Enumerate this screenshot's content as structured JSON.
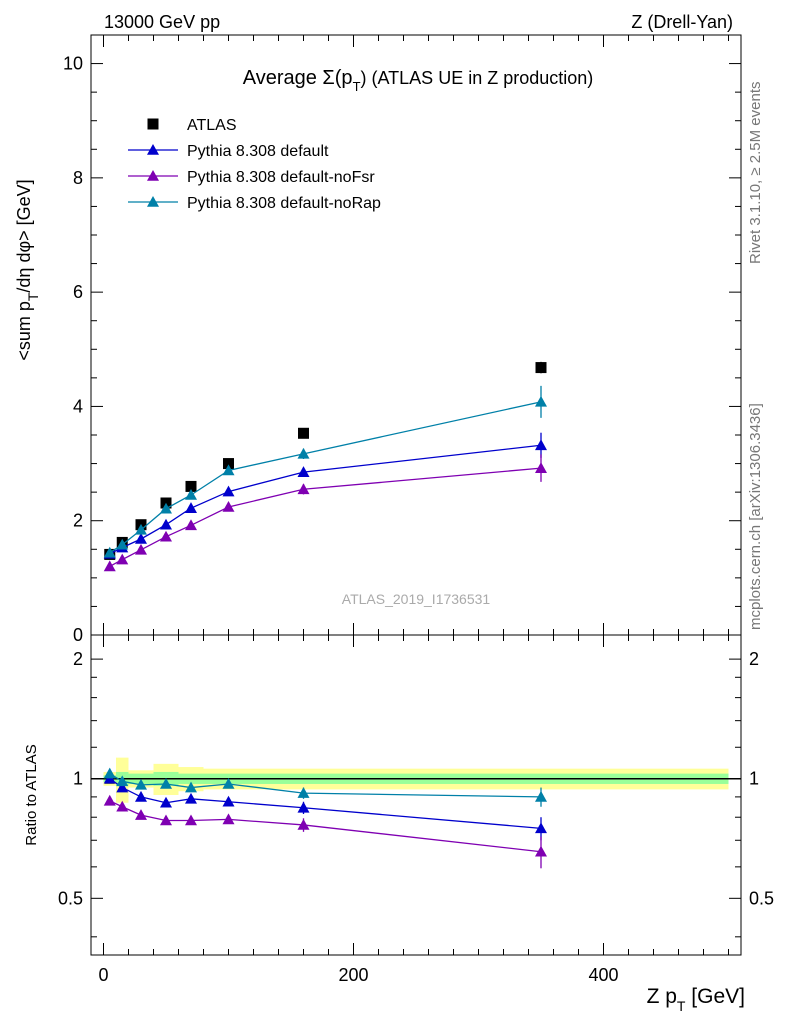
{
  "header": {
    "left": "13000 GeV pp",
    "right": "Z (Drell-Yan)"
  },
  "side_labels": {
    "rivet": "Rivet 3.1.10, ≥ 2.5M events",
    "mcplots": "mcplots.cern.ch [arXiv:1306.3436]"
  },
  "watermark": "ATLAS_2019_I1736531",
  "colors": {
    "atlas": "#000000",
    "default": "#0000cc",
    "noFsr": "#7f00b2",
    "noRap": "#0080a8",
    "band_outer": "#ffff99",
    "band_inner": "#99ff99"
  },
  "chart_data": [
    {
      "type": "scatter",
      "title": "Average Σ(p_T) (ATLAS UE in Z production)",
      "title_parts": {
        "pre": "Average Σ(p",
        "sub": "T",
        "post": ") (ATLAS UE in Z production)"
      },
      "ylabel": "<sum p_T/dη dφ> [GeV]",
      "ylabel_parts": {
        "pre": "<sum p",
        "sub": "T",
        "post": "/dη dφ> [GeV]"
      },
      "xlim": [
        -10,
        510
      ],
      "ylim": [
        0,
        10.5
      ],
      "y_ticks": [
        0,
        2,
        4,
        6,
        8,
        10
      ],
      "x": [
        5,
        15,
        30,
        50,
        70,
        100,
        160,
        350
      ],
      "series": [
        {
          "name": "ATLAS",
          "marker": "square",
          "color": "#000000",
          "values": [
            1.41,
            1.62,
            1.93,
            2.31,
            2.6,
            3.0,
            3.53,
            4.68
          ],
          "errors": [
            0.02,
            0.03,
            0.03,
            0.04,
            0.05,
            0.06,
            0.07,
            0.1
          ]
        },
        {
          "name": "Pythia 8.308 default",
          "marker": "triangle",
          "color": "#0000cc",
          "values": [
            1.42,
            1.53,
            1.68,
            1.93,
            2.22,
            2.51,
            2.85,
            3.32
          ],
          "errors": [
            0.02,
            0.03,
            0.04,
            0.05,
            0.06,
            0.06,
            0.08,
            0.22
          ]
        },
        {
          "name": "Pythia 8.308 default-noFsr",
          "marker": "triangle",
          "color": "#7f00b2",
          "values": [
            1.2,
            1.32,
            1.49,
            1.72,
            1.92,
            2.24,
            2.55,
            2.92
          ],
          "errors": [
            0.02,
            0.03,
            0.04,
            0.05,
            0.05,
            0.06,
            0.09,
            0.24
          ]
        },
        {
          "name": "Pythia 8.308 default-noRap",
          "marker": "triangle",
          "color": "#0080a8",
          "values": [
            1.44,
            1.58,
            1.84,
            2.21,
            2.45,
            2.88,
            3.17,
            4.08
          ],
          "errors": [
            0.02,
            0.03,
            0.04,
            0.05,
            0.06,
            0.06,
            0.09,
            0.28
          ]
        }
      ]
    },
    {
      "type": "scatter",
      "ylabel": "Ratio to ATLAS",
      "xlabel": "Z p_T [GeV]",
      "xlabel_parts": {
        "pre": "Z p",
        "sub": "T",
        "post": " [GeV]"
      },
      "xlim": [
        -10,
        510
      ],
      "ylim": [
        0.36,
        2.3
      ],
      "y_scale": "log",
      "y_ticks": [
        0.5,
        1,
        2
      ],
      "y_tick_labels": [
        "0.5",
        "1",
        "2"
      ],
      "x_ticks": [
        0,
        200,
        400
      ],
      "x_tick_labels": [
        "0",
        "200",
        "400"
      ],
      "x": [
        5,
        15,
        30,
        50,
        70,
        100,
        160,
        350
      ],
      "bin_edges": [
        0,
        10,
        20,
        40,
        60,
        80,
        120,
        200,
        500
      ],
      "band_outer_half": [
        0.04,
        0.13,
        0.05,
        0.09,
        0.07,
        0.06,
        0.06,
        0.06
      ],
      "band_inner_half": [
        0.02,
        0.04,
        0.03,
        0.04,
        0.03,
        0.03,
        0.03,
        0.03
      ],
      "series": [
        {
          "name": "Pythia 8.308 default",
          "color": "#0000cc",
          "values": [
            1.0,
            0.95,
            0.9,
            0.87,
            0.89,
            0.875,
            0.845,
            0.75
          ],
          "errors": [
            0.02,
            0.02,
            0.02,
            0.02,
            0.02,
            0.02,
            0.03,
            0.05
          ]
        },
        {
          "name": "Pythia 8.308 default-noFsr",
          "color": "#7f00b2",
          "values": [
            0.88,
            0.85,
            0.81,
            0.785,
            0.785,
            0.79,
            0.765,
            0.655
          ],
          "errors": [
            0.02,
            0.02,
            0.02,
            0.02,
            0.02,
            0.02,
            0.03,
            0.06
          ]
        },
        {
          "name": "Pythia 8.308 default-noRap",
          "color": "#0080a8",
          "values": [
            1.03,
            0.985,
            0.965,
            0.97,
            0.95,
            0.97,
            0.92,
            0.9
          ],
          "errors": [
            0.02,
            0.02,
            0.02,
            0.02,
            0.02,
            0.02,
            0.03,
            0.05
          ]
        }
      ]
    }
  ]
}
